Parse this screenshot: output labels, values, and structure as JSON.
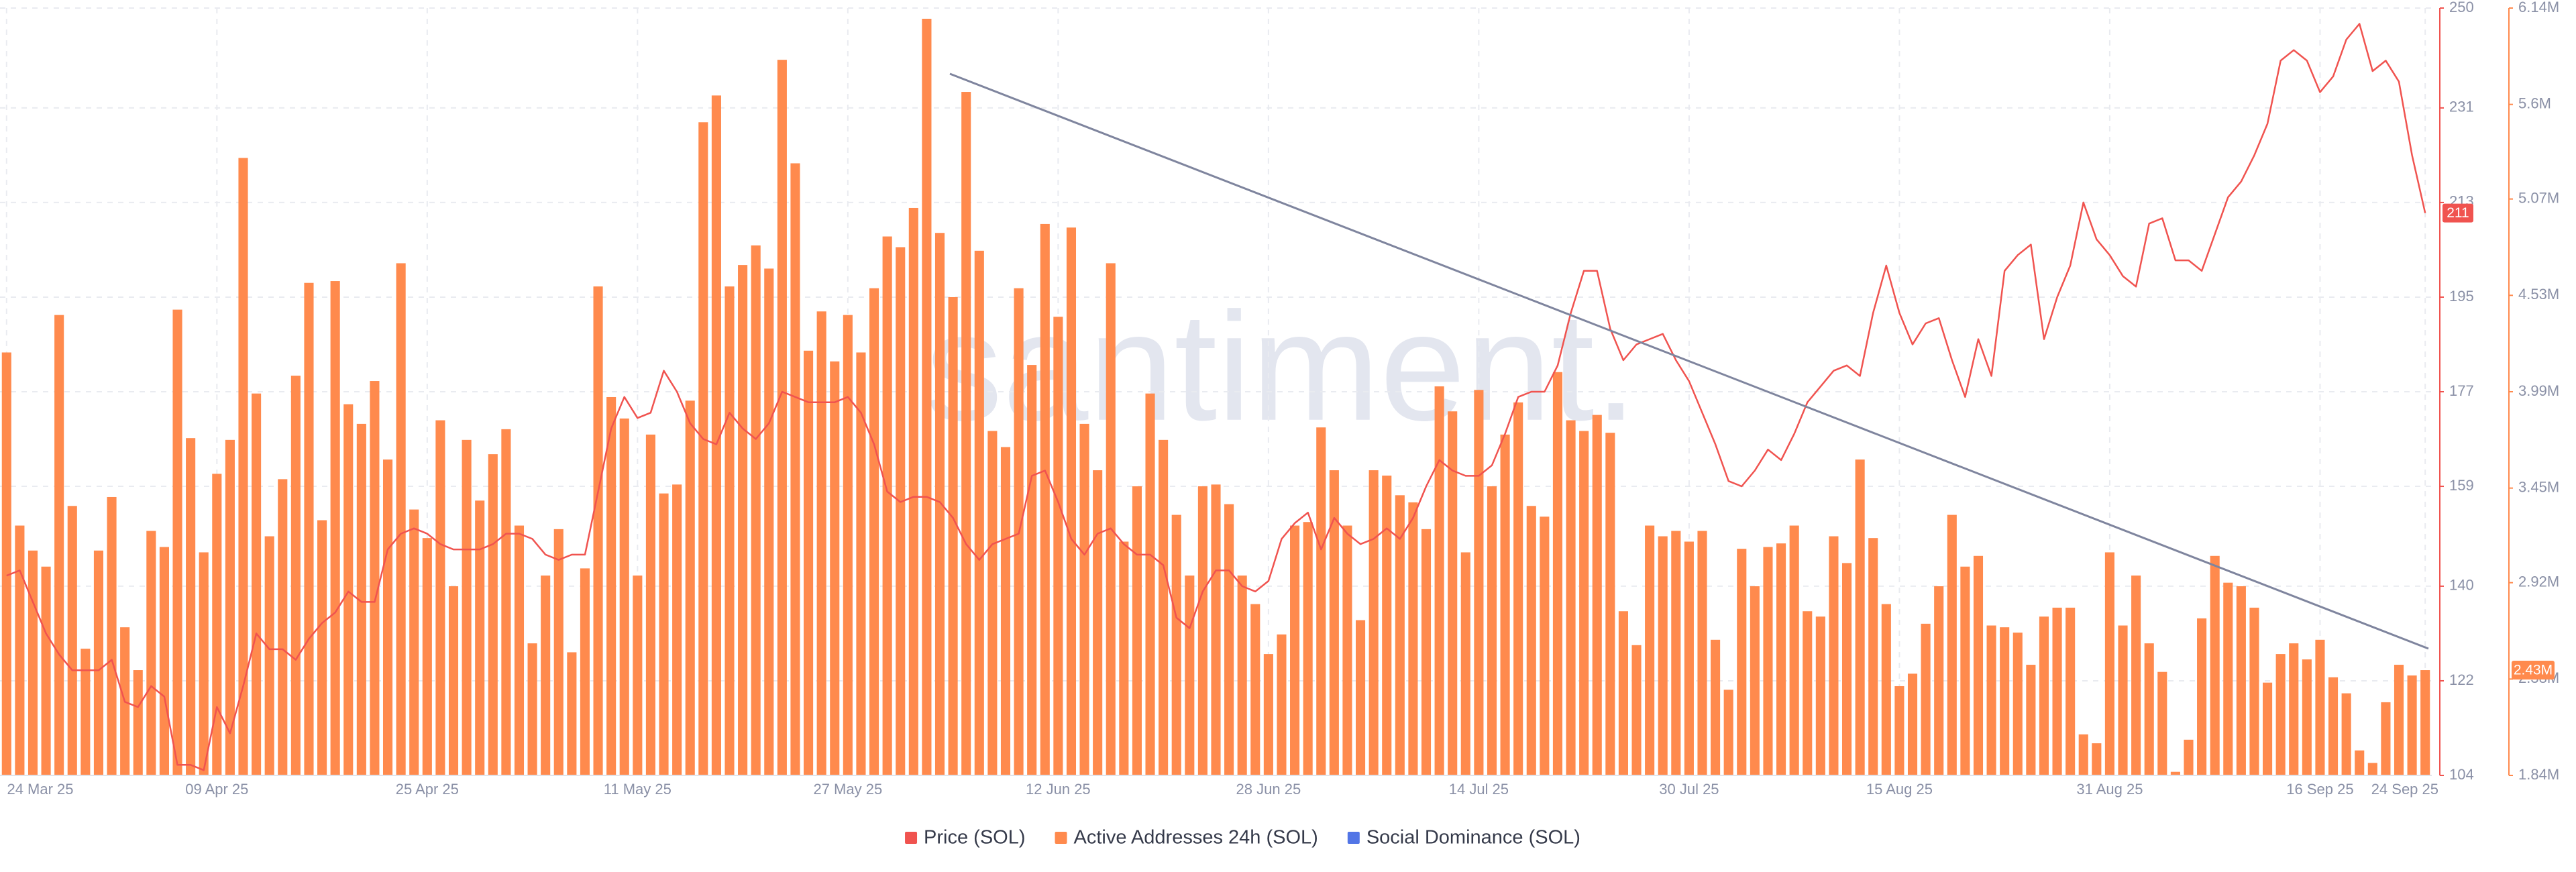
{
  "chart_data": {
    "type": "combo",
    "watermark": "santiment.",
    "categories": [
      "24 Mar 25",
      null,
      null,
      null,
      null,
      null,
      null,
      null,
      null,
      null,
      null,
      null,
      null,
      null,
      null,
      null,
      "09 Apr 25",
      null,
      null,
      null,
      null,
      null,
      null,
      null,
      null,
      null,
      null,
      null,
      null,
      null,
      null,
      null,
      "25 Apr 25",
      null,
      null,
      null,
      null,
      null,
      null,
      null,
      null,
      null,
      null,
      null,
      null,
      null,
      null,
      null,
      "11 May 25",
      null,
      null,
      null,
      null,
      null,
      null,
      null,
      null,
      null,
      null,
      null,
      null,
      null,
      null,
      null,
      "27 May 25",
      null,
      null,
      null,
      null,
      null,
      null,
      null,
      null,
      null,
      null,
      null,
      null,
      null,
      null,
      null,
      "12 Jun 25",
      null,
      null,
      null,
      null,
      null,
      null,
      null,
      null,
      null,
      null,
      null,
      null,
      null,
      null,
      null,
      "28 Jun 25",
      null,
      null,
      null,
      null,
      null,
      null,
      null,
      null,
      null,
      null,
      null,
      null,
      null,
      null,
      null,
      "14 Jul 25",
      null,
      null,
      null,
      null,
      null,
      null,
      null,
      null,
      null,
      null,
      null,
      null,
      null,
      null,
      null,
      "30 Jul 25",
      null,
      null,
      null,
      null,
      null,
      null,
      null,
      null,
      null,
      null,
      null,
      null,
      null,
      null,
      null,
      "15 Aug 25",
      null,
      null,
      null,
      null,
      null,
      null,
      null,
      null,
      null,
      null,
      null,
      null,
      null,
      null,
      null,
      "31 Aug 25",
      null,
      null,
      null,
      null,
      null,
      null,
      null,
      null,
      null,
      null,
      null,
      null,
      null,
      null,
      null,
      "16 Sep 25",
      null,
      null,
      null,
      null,
      null,
      null,
      null,
      "24 Sep 25"
    ],
    "ylim": [
      104,
      250
    ],
    "yticks": [
      104,
      122,
      140,
      159,
      177,
      195,
      213,
      231,
      250
    ],
    "y2lim": [
      1840000,
      6140000
    ],
    "y2ticks": [
      {
        "value": 1840000,
        "label": "1.84M"
      },
      {
        "value": 2380000,
        "label": "2.38M"
      },
      {
        "value": 2920000,
        "label": "2.92M"
      },
      {
        "value": 3450000,
        "label": "3.45M"
      },
      {
        "value": 3990000,
        "label": "3.99M"
      },
      {
        "value": 4530000,
        "label": "4.53M"
      },
      {
        "value": 5070000,
        "label": "5.07M"
      },
      {
        "value": 5600000,
        "label": "5.6M"
      },
      {
        "value": 6140000,
        "label": "6.14M"
      }
    ],
    "grid": true,
    "series": [
      {
        "name": "Price (SOL)",
        "type": "line",
        "axis": "y",
        "color": "#f0534f",
        "current_label": "211",
        "values": [
          142,
          143,
          137,
          131,
          127,
          124,
          124,
          124,
          126,
          118,
          117,
          121,
          119,
          106,
          106,
          105,
          117,
          112,
          121,
          131,
          128,
          128,
          126,
          130,
          133,
          135,
          139,
          137,
          137,
          147,
          150,
          151,
          150,
          148,
          147,
          147,
          147,
          148,
          150,
          150,
          149,
          146,
          145,
          146,
          146,
          158,
          170,
          176,
          172,
          173,
          181,
          177,
          171,
          168,
          167,
          173,
          170,
          168,
          171,
          177,
          176,
          175,
          175,
          175,
          176,
          173,
          167,
          158,
          156,
          157,
          157,
          156,
          153,
          148,
          145,
          148,
          149,
          150,
          161,
          162,
          156,
          149,
          146,
          150,
          151,
          148,
          146,
          146,
          144,
          134,
          132,
          139,
          143,
          143,
          140,
          139,
          141,
          149,
          152,
          154,
          147,
          153,
          150,
          148,
          149,
          151,
          149,
          153,
          159,
          164,
          162,
          161,
          161,
          163,
          169,
          176,
          177,
          177,
          182,
          192,
          200,
          200,
          189,
          183,
          186,
          187,
          188,
          183,
          179,
          173,
          167,
          160,
          159,
          162,
          166,
          164,
          169,
          175,
          178,
          181,
          182,
          180,
          192,
          201,
          192,
          186,
          190,
          191,
          183,
          176,
          187,
          180,
          200,
          203,
          205,
          187,
          195,
          201,
          213,
          206,
          203,
          199,
          197,
          209,
          210,
          202,
          202,
          200,
          207,
          214,
          217,
          222,
          228,
          240,
          242,
          240,
          234,
          237,
          244,
          247,
          238,
          240,
          236,
          222,
          211
        ]
      },
      {
        "name": "Active Addresses 24h (SOL)",
        "type": "bar",
        "axis": "y2",
        "color": "#ff8a4d",
        "current_label": "2.43M",
        "values": [
          4210000,
          3240000,
          3100000,
          3010000,
          4420000,
          3350000,
          2550000,
          3100000,
          3400000,
          2670000,
          2430000,
          3210000,
          3120000,
          4450000,
          3730000,
          3090000,
          3530000,
          3720000,
          5300000,
          3980000,
          3180000,
          3500000,
          4080000,
          4600000,
          3270000,
          4610000,
          3920000,
          3810000,
          4050000,
          3610000,
          4710000,
          3330000,
          3170000,
          3830000,
          2900000,
          3720000,
          3380000,
          3640000,
          3780000,
          3240000,
          2580000,
          2960000,
          3220000,
          2530000,
          3000000,
          4580000,
          3960000,
          3840000,
          2960000,
          3750000,
          3420000,
          3470000,
          3940000,
          5500000,
          5650000,
          4580000,
          4700000,
          4810000,
          4680000,
          5850000,
          5270000,
          4220000,
          4440000,
          4160000,
          4420000,
          4210000,
          4570000,
          4860000,
          4800000,
          5020000,
          6080000,
          4880000,
          4520000,
          5670000,
          4780000,
          3770000,
          3680000,
          4570000,
          4140000,
          4930000,
          4410000,
          4910000,
          3810000,
          3550000,
          4710000,
          3150000,
          3460000,
          3980000,
          3720000,
          3300000,
          2960000,
          3460000,
          3470000,
          3360000,
          2960000,
          2800000,
          2520000,
          2630000,
          3240000,
          3260000,
          3790000,
          3550000,
          3240000,
          2710000,
          3550000,
          3520000,
          3410000,
          3370000,
          3220000,
          4020000,
          3880000,
          3090000,
          4000000,
          3460000,
          3750000,
          3930000,
          3350000,
          3290000,
          4100000,
          3830000,
          3770000,
          3860000,
          3760000,
          2760000,
          2570000,
          3240000,
          3180000,
          3210000,
          3150000,
          3210000,
          2600000,
          2320000,
          3110000,
          2900000,
          3120000,
          3140000,
          3240000,
          2760000,
          2730000,
          3180000,
          3030000,
          3610000,
          3170000,
          2800000,
          2340000,
          2410000,
          2690000,
          2900000,
          3300000,
          3010000,
          3070000,
          2680000,
          2670000,
          2640000,
          2460000,
          2730000,
          2780000,
          2780000,
          2070000,
          2020000,
          3090000,
          2680000,
          2960000,
          2580000,
          2420000,
          1860000,
          2040000,
          2720000,
          3070000,
          2920000,
          2900000,
          2780000,
          2360000,
          2520000,
          2580000,
          2490000,
          2600000,
          2390000,
          2300000,
          1980000,
          1910000,
          2250000,
          2460000,
          2400000,
          2430000
        ]
      },
      {
        "name": "Social Dominance (SOL)",
        "type": "line",
        "axis": "y",
        "color": "#5275e6",
        "values": [
          null,
          null,
          null,
          null,
          null,
          null,
          null,
          null,
          null,
          null,
          null,
          null,
          null,
          null,
          null,
          null,
          null,
          null,
          null,
          null,
          null,
          null,
          null,
          null,
          null,
          null,
          null,
          null,
          null,
          null,
          null,
          null,
          null,
          null,
          null,
          null,
          null,
          null,
          null,
          null,
          null,
          null,
          null,
          null,
          null,
          null,
          null,
          null,
          null,
          null,
          null,
          null,
          null,
          null,
          null,
          null,
          null,
          null,
          null,
          null,
          null,
          null,
          null,
          null,
          null,
          null,
          null,
          null,
          null,
          null,
          null,
          null,
          null,
          null,
          null,
          null,
          null,
          null,
          null,
          null,
          null,
          null,
          null,
          null,
          null,
          null,
          null,
          null,
          null,
          null,
          null,
          null,
          null,
          null,
          null,
          null,
          null,
          null,
          null,
          null,
          null,
          null,
          null,
          null,
          null,
          null,
          null,
          null,
          null,
          null,
          null,
          null,
          null,
          null,
          null,
          null,
          null,
          null,
          null,
          null,
          null,
          null,
          null,
          null,
          null,
          null,
          null,
          null,
          null,
          null,
          null,
          null,
          null,
          null,
          null,
          null,
          null,
          null,
          null,
          null,
          null,
          null,
          null,
          null,
          null,
          null,
          null,
          null,
          null,
          null,
          null,
          null,
          null,
          null,
          null,
          null,
          null,
          null,
          null,
          null,
          null,
          null,
          null,
          null,
          null,
          null,
          null,
          null,
          null,
          null,
          null,
          null,
          null,
          null,
          null,
          null,
          null,
          null,
          null,
          null,
          null,
          null,
          null,
          null,
          null
        ]
      }
    ]
  }
}
